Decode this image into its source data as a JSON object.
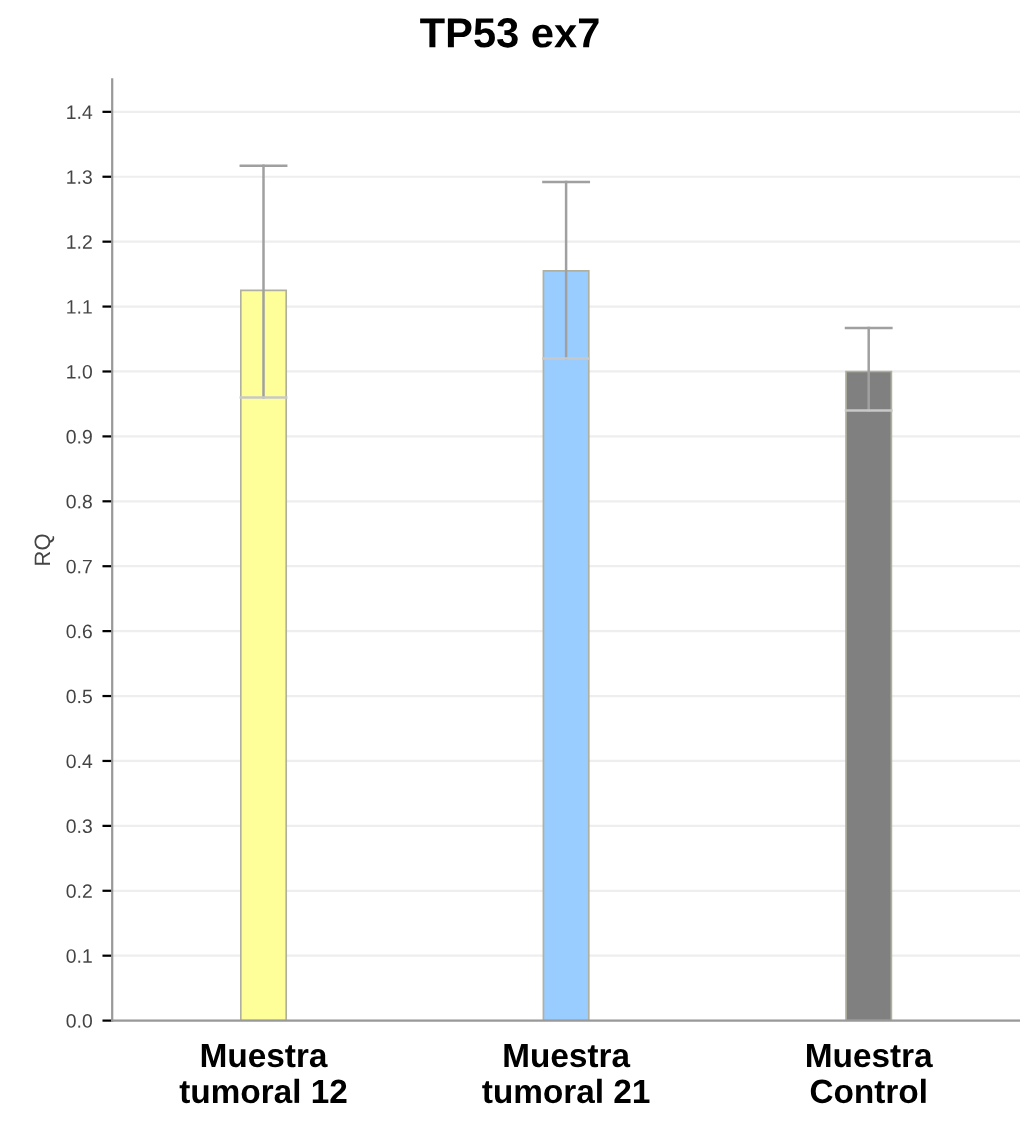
{
  "chart_data": {
    "type": "bar",
    "title": "TP53 ex7",
    "ylabel": "RQ",
    "categories": [
      "Muestra\ntumoral 12",
      "Muestra\ntumoral 21",
      "Muestra\nControl"
    ],
    "values": [
      1.125,
      1.155,
      1.0
    ],
    "colors": [
      "#ffff99",
      "#99ccff",
      "#808080"
    ],
    "errors": [
      [
        0.96,
        1.317
      ],
      [
        1.02,
        1.292
      ],
      [
        0.94,
        1.067
      ]
    ],
    "ylim": [
      0,
      1.45
    ],
    "yticks": [
      {
        "value": 0,
        "label": "0.0"
      },
      {
        "value": 0.1,
        "label": "0.1"
      },
      {
        "value": 0.2,
        "label": "0.2"
      },
      {
        "value": 0.3,
        "label": "0.3"
      },
      {
        "value": 0.4,
        "label": "0.4"
      },
      {
        "value": 0.5,
        "label": "0.5"
      },
      {
        "value": 0.6,
        "label": "0.6"
      },
      {
        "value": 0.7,
        "label": "0.7"
      },
      {
        "value": 0.8,
        "label": "0.8"
      },
      {
        "value": 0.9,
        "label": "0.9"
      },
      {
        "value": 1.0,
        "label": "1.0"
      },
      {
        "value": 1.1,
        "label": "1.1"
      },
      {
        "value": 1.2,
        "label": "1.2"
      },
      {
        "value": 1.3,
        "label": "1.3"
      },
      {
        "value": 1.4,
        "label": "1.4"
      }
    ],
    "grid": "y"
  }
}
